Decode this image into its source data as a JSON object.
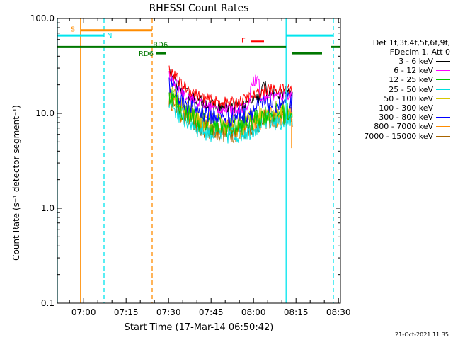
{
  "chart_data": {
    "type": "line",
    "title": "RHESSI Count Rates",
    "xlabel": "Start Time (17-Mar-14 06:50:42)",
    "ylabel": "Count Rate (s⁻¹ detector segment⁻¹)",
    "yscale": "log",
    "ylim": [
      0.1,
      100
    ],
    "xlim_minutes": [
      0,
      100
    ],
    "x_ticks": [
      {
        "label": "07:00",
        "min": 9.3
      },
      {
        "label": "07:15",
        "min": 24.3
      },
      {
        "label": "07:30",
        "min": 39.3
      },
      {
        "label": "07:45",
        "min": 54.3
      },
      {
        "label": "08:00",
        "min": 69.3
      },
      {
        "label": "08:15",
        "min": 84.3
      },
      {
        "label": "08:30",
        "min": 99.3
      }
    ],
    "y_ticks": [
      {
        "label": "100.0",
        "value": 100
      },
      {
        "label": "10.0",
        "value": 10
      },
      {
        "label": "1.0",
        "value": 1
      },
      {
        "label": "0.1",
        "value": 0.1
      }
    ],
    "legend_header": [
      "Det 1f,3f,4f,5f,6f,9f,",
      "FDecim 1, Att 0"
    ],
    "series": [
      {
        "name": "3 - 6 keV",
        "color": "#000000",
        "scale": 1.0
      },
      {
        "name": "6 - 12 keV",
        "color": "#ff00ff",
        "scale": 0.95
      },
      {
        "name": "12 - 25 keV",
        "color": "#00c800",
        "scale": 0.62
      },
      {
        "name": "25 - 50 keV",
        "color": "#00e0e0",
        "scale": 0.52
      },
      {
        "name": "50 - 100 keV",
        "color": "#d8c800",
        "scale": 0.66
      },
      {
        "name": "100 - 300 keV",
        "color": "#ff0000",
        "scale": 1.12
      },
      {
        "name": "300 - 800 keV",
        "color": "#0000ff",
        "scale": 0.8
      },
      {
        "name": "800 - 7000 keV",
        "color": "#ff8c00",
        "scale": 0.58
      },
      {
        "name": "7000 - 15000 keV",
        "color": "#a86400",
        "scale": 0.55
      }
    ],
    "base_curve": {
      "start_min": 39.5,
      "end_min": 83.0,
      "points": [
        [
          39.5,
          26
        ],
        [
          44,
          17.5
        ],
        [
          50,
          13.5
        ],
        [
          56,
          11.8
        ],
        [
          62,
          11.5
        ],
        [
          66,
          12.4
        ],
        [
          70,
          14
        ],
        [
          74,
          16
        ],
        [
          79,
          16
        ],
        [
          83,
          16.5
        ]
      ]
    },
    "annotations": {
      "night_start_min": 0.0,
      "night_start2_min": 80.8,
      "saa_start_min": 8.2,
      "saa_end_min": 33.5,
      "segments": [
        {
          "label": "S",
          "color": "#ff8c00",
          "from_min": 8.2,
          "to_min": 33.5,
          "y": 75
        },
        {
          "label": "N",
          "color": "#00e5ee",
          "from_min": 0.0,
          "to_min": 16.5,
          "y": 66
        },
        {
          "label": "",
          "color": "#00e5ee",
          "from_min": 80.8,
          "to_min": 97.5,
          "y": 66
        },
        {
          "label": "F",
          "color": "#ff0000",
          "from_min": 68.5,
          "to_min": 73.0,
          "y": 57
        },
        {
          "label": "RD6",
          "color": "#007800",
          "from_min": 0.0,
          "to_min": 80.8,
          "y": 50
        },
        {
          "label": "RD6",
          "color": "#007800",
          "from_min": 35.0,
          "to_min": 38.5,
          "y": 43
        },
        {
          "label": "",
          "color": "#007800",
          "from_min": 83.0,
          "to_min": 93.5,
          "y": 43
        },
        {
          "label": "",
          "color": "#007800",
          "from_min": 96.5,
          "to_min": 100,
          "y": 50
        }
      ],
      "vlines": [
        {
          "min": 0.0,
          "color": "#00e5ee",
          "dash": false
        },
        {
          "min": 8.2,
          "color": "#ff8c00",
          "dash": false
        },
        {
          "min": 16.5,
          "color": "#00e5ee",
          "dash": true
        },
        {
          "min": 33.5,
          "color": "#ff8c00",
          "dash": true
        },
        {
          "min": 80.8,
          "color": "#00e5ee",
          "dash": false
        },
        {
          "min": 97.5,
          "color": "#00e5ee",
          "dash": true
        }
      ]
    }
  },
  "footer": {
    "timestamp": "21-Oct-2021 11:35"
  }
}
